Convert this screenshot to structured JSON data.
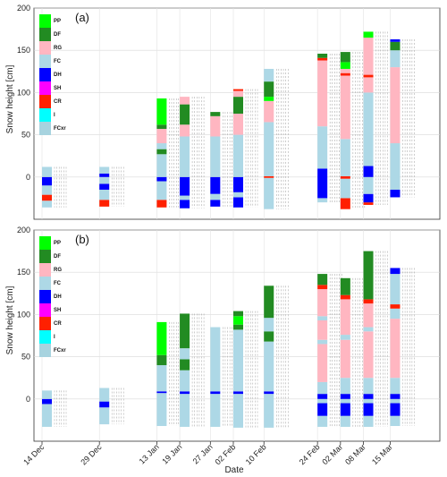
{
  "chart_data": {
    "type": "snow-profile-stacked-bar",
    "xlabel": "Date",
    "ylabel": "Snow height [cm]",
    "x_ticks": [
      {
        "label": "14 Dec",
        "day": 0
      },
      {
        "label": "29 Dec",
        "day": 15
      },
      {
        "label": "13 Jan",
        "day": 30
      },
      {
        "label": "19 Jan",
        "day": 36
      },
      {
        "label": "27 Jan",
        "day": 44
      },
      {
        "label": "02 Feb",
        "day": 50
      },
      {
        "label": "10 Feb",
        "day": 58
      },
      {
        "label": "24 Feb",
        "day": 72
      },
      {
        "label": "02 Mar",
        "day": 78
      },
      {
        "label": "08 Mar",
        "day": 84
      },
      {
        "label": "15 Mar",
        "day": 91
      }
    ],
    "legend": [
      {
        "code": "PP",
        "color": "#00ff00"
      },
      {
        "code": "DF",
        "color": "#228b22"
      },
      {
        "code": "RG",
        "color": "#ffb6c1"
      },
      {
        "code": "FC",
        "color": "#add8e6"
      },
      {
        "code": "DH",
        "color": "#0000ff"
      },
      {
        "code": "SH",
        "color": "#ff00ff"
      },
      {
        "code": "CR",
        "color": "#ff2000"
      },
      {
        "code": "I",
        "color": "#00ffff"
      },
      {
        "code": "FCxr",
        "color": "#a7d3df"
      }
    ],
    "panels": [
      {
        "label": "(a)",
        "ylim": [
          -50,
          200
        ],
        "yticks": [
          0,
          50,
          100,
          150,
          200
        ],
        "profiles": [
          {
            "date": "14 Dec",
            "layers": [
              [
                "FC",
                -36,
                -28
              ],
              [
                "CR",
                -28,
                -21
              ],
              [
                "FC",
                -21,
                -10
              ],
              [
                "DH",
                -10,
                0
              ],
              [
                "FC",
                0,
                12
              ]
            ]
          },
          {
            "date": "29 Dec",
            "layers": [
              [
                "CR",
                -35,
                -27
              ],
              [
                "FC",
                -27,
                -15
              ],
              [
                "DH",
                -15,
                -8
              ],
              [
                "FC",
                -8,
                0
              ],
              [
                "DH",
                0,
                4
              ],
              [
                "FC",
                4,
                12
              ]
            ]
          },
          {
            "date": "13 Jan",
            "layers": [
              [
                "CR",
                -36,
                -27
              ],
              [
                "FC",
                -27,
                -5
              ],
              [
                "DH",
                -5,
                0
              ],
              [
                "FC",
                0,
                27
              ],
              [
                "DF",
                27,
                33
              ],
              [
                "FC",
                33,
                40
              ],
              [
                "RG",
                40,
                57
              ],
              [
                "DF",
                57,
                62
              ],
              [
                "PP",
                62,
                93
              ]
            ]
          },
          {
            "date": "19 Jan",
            "layers": [
              [
                "DH",
                -37,
                -27
              ],
              [
                "FC",
                -27,
                -22
              ],
              [
                "DH",
                -22,
                0
              ],
              [
                "FC",
                0,
                48
              ],
              [
                "RG",
                48,
                62
              ],
              [
                "DF",
                62,
                86
              ],
              [
                "RG",
                86,
                95
              ]
            ]
          },
          {
            "date": "27 Jan",
            "layers": [
              [
                "DH",
                -35,
                -27
              ],
              [
                "FC",
                -27,
                -20
              ],
              [
                "DH",
                -20,
                0
              ],
              [
                "FC",
                0,
                48
              ],
              [
                "RG",
                48,
                72
              ],
              [
                "DF",
                72,
                77
              ]
            ]
          },
          {
            "date": "02 Feb",
            "layers": [
              [
                "DH",
                -36,
                -24
              ],
              [
                "FC",
                -24,
                -18
              ],
              [
                "DH",
                -18,
                0
              ],
              [
                "FC",
                0,
                50
              ],
              [
                "RG",
                50,
                75
              ],
              [
                "DF",
                75,
                95
              ],
              [
                "RG",
                95,
                102
              ],
              [
                "CR",
                102,
                104
              ]
            ]
          },
          {
            "date": "10 Feb",
            "layers": [
              [
                "FC",
                -38,
                -1
              ],
              [
                "CR",
                -1,
                1
              ],
              [
                "FC",
                1,
                65
              ],
              [
                "RG",
                65,
                90
              ],
              [
                "PP",
                90,
                95
              ],
              [
                "DF",
                95,
                113
              ],
              [
                "FC",
                113,
                128
              ]
            ]
          },
          {
            "date": "24 Feb",
            "layers": [
              [
                "FC",
                -30,
                -25
              ],
              [
                "DH",
                -25,
                10
              ],
              [
                "FC",
                10,
                60
              ],
              [
                "RG",
                60,
                138
              ],
              [
                "CR",
                138,
                141
              ],
              [
                "DF",
                141,
                146
              ]
            ]
          },
          {
            "date": "02 Mar",
            "layers": [
              [
                "CR",
                -38,
                -25
              ],
              [
                "FC",
                -25,
                -2
              ],
              [
                "CR",
                -2,
                1
              ],
              [
                "FC",
                1,
                45
              ],
              [
                "RG",
                45,
                120
              ],
              [
                "CR",
                120,
                123
              ],
              [
                "RG",
                123,
                128
              ],
              [
                "PP",
                128,
                136
              ],
              [
                "DF",
                136,
                148
              ]
            ]
          },
          {
            "date": "08 Mar",
            "layers": [
              [
                "CR",
                -33,
                -30
              ],
              [
                "DH",
                -30,
                -20
              ],
              [
                "FC",
                -20,
                0
              ],
              [
                "DH",
                0,
                13
              ],
              [
                "FC",
                13,
                100
              ],
              [
                "RG",
                100,
                118
              ],
              [
                "CR",
                118,
                121
              ],
              [
                "RG",
                121,
                165
              ],
              [
                "PP",
                165,
                172
              ]
            ]
          },
          {
            "date": "15 Mar",
            "layers": [
              [
                "DH",
                -24,
                -15
              ],
              [
                "FC",
                -15,
                40
              ],
              [
                "RG",
                40,
                130
              ],
              [
                "FC",
                130,
                150
              ],
              [
                "DF",
                150,
                160
              ],
              [
                "DH",
                160,
                163
              ]
            ]
          }
        ]
      },
      {
        "label": "(b)",
        "ylim": [
          -50,
          200
        ],
        "yticks": [
          0,
          50,
          100,
          150,
          200
        ],
        "profiles": [
          {
            "date": "14 Dec",
            "layers": [
              [
                "FC",
                -33,
                -6
              ],
              [
                "DH",
                -6,
                0
              ],
              [
                "FC",
                0,
                10
              ]
            ]
          },
          {
            "date": "29 Dec",
            "layers": [
              [
                "FC",
                -30,
                -10
              ],
              [
                "DH",
                -10,
                -3
              ],
              [
                "FC",
                -3,
                13
              ]
            ]
          },
          {
            "date": "13 Jan",
            "layers": [
              [
                "FC",
                -32,
                7
              ],
              [
                "DH",
                7,
                9
              ],
              [
                "FC",
                9,
                40
              ],
              [
                "DF",
                40,
                52
              ],
              [
                "PP",
                52,
                91
              ]
            ]
          },
          {
            "date": "19 Jan",
            "layers": [
              [
                "FC",
                -33,
                6
              ],
              [
                "DH",
                6,
                9
              ],
              [
                "FC",
                9,
                34
              ],
              [
                "DF",
                34,
                47
              ],
              [
                "FC",
                47,
                60
              ],
              [
                "DF",
                60,
                101
              ]
            ]
          },
          {
            "date": "27 Jan",
            "layers": [
              [
                "FC",
                -33,
                6
              ],
              [
                "DH",
                6,
                9
              ],
              [
                "FC",
                9,
                85
              ]
            ]
          },
          {
            "date": "02 Feb",
            "layers": [
              [
                "FC",
                -34,
                6
              ],
              [
                "DH",
                6,
                9
              ],
              [
                "FC",
                9,
                82
              ],
              [
                "DF",
                82,
                88
              ],
              [
                "PP",
                88,
                98
              ],
              [
                "DF",
                98,
                104
              ]
            ]
          },
          {
            "date": "10 Feb",
            "layers": [
              [
                "FC",
                -34,
                6
              ],
              [
                "DH",
                6,
                9
              ],
              [
                "FC",
                9,
                68
              ],
              [
                "DF",
                68,
                80
              ],
              [
                "FC",
                80,
                96
              ],
              [
                "DF",
                96,
                134
              ]
            ]
          },
          {
            "date": "24 Feb",
            "layers": [
              [
                "FC",
                -33,
                -20
              ],
              [
                "DH",
                -20,
                -5
              ],
              [
                "FC",
                -5,
                0
              ],
              [
                "DH",
                0,
                6
              ],
              [
                "FC",
                6,
                20
              ],
              [
                "RG",
                20,
                65
              ],
              [
                "FC",
                65,
                70
              ],
              [
                "RG",
                70,
                93
              ],
              [
                "FC",
                93,
                98
              ],
              [
                "RG",
                98,
                130
              ],
              [
                "CR",
                130,
                135
              ],
              [
                "DF",
                135,
                148
              ]
            ]
          },
          {
            "date": "02 Mar",
            "layers": [
              [
                "FC",
                -33,
                -20
              ],
              [
                "DH",
                -20,
                -5
              ],
              [
                "FC",
                -5,
                0
              ],
              [
                "DH",
                0,
                6
              ],
              [
                "FC",
                6,
                25
              ],
              [
                "RG",
                25,
                70
              ],
              [
                "FC",
                70,
                76
              ],
              [
                "RG",
                76,
                118
              ],
              [
                "CR",
                118,
                123
              ],
              [
                "DF",
                123,
                143
              ]
            ]
          },
          {
            "date": "08 Mar",
            "layers": [
              [
                "FC",
                -33,
                -20
              ],
              [
                "DH",
                -20,
                -5
              ],
              [
                "FC",
                -5,
                0
              ],
              [
                "DH",
                0,
                6
              ],
              [
                "FC",
                6,
                25
              ],
              [
                "RG",
                25,
                80
              ],
              [
                "FC",
                80,
                85
              ],
              [
                "RG",
                85,
                113
              ],
              [
                "CR",
                113,
                118
              ],
              [
                "DF",
                118,
                175
              ]
            ]
          },
          {
            "date": "15 Mar",
            "layers": [
              [
                "FC",
                -32,
                -20
              ],
              [
                "DH",
                -20,
                -5
              ],
              [
                "FC",
                -5,
                0
              ],
              [
                "DH",
                0,
                6
              ],
              [
                "FC",
                6,
                25
              ],
              [
                "RG",
                25,
                95
              ],
              [
                "FC",
                95,
                107
              ],
              [
                "CR",
                107,
                112
              ],
              [
                "FC",
                112,
                148
              ],
              [
                "DH",
                148,
                155
              ]
            ]
          }
        ]
      }
    ]
  }
}
